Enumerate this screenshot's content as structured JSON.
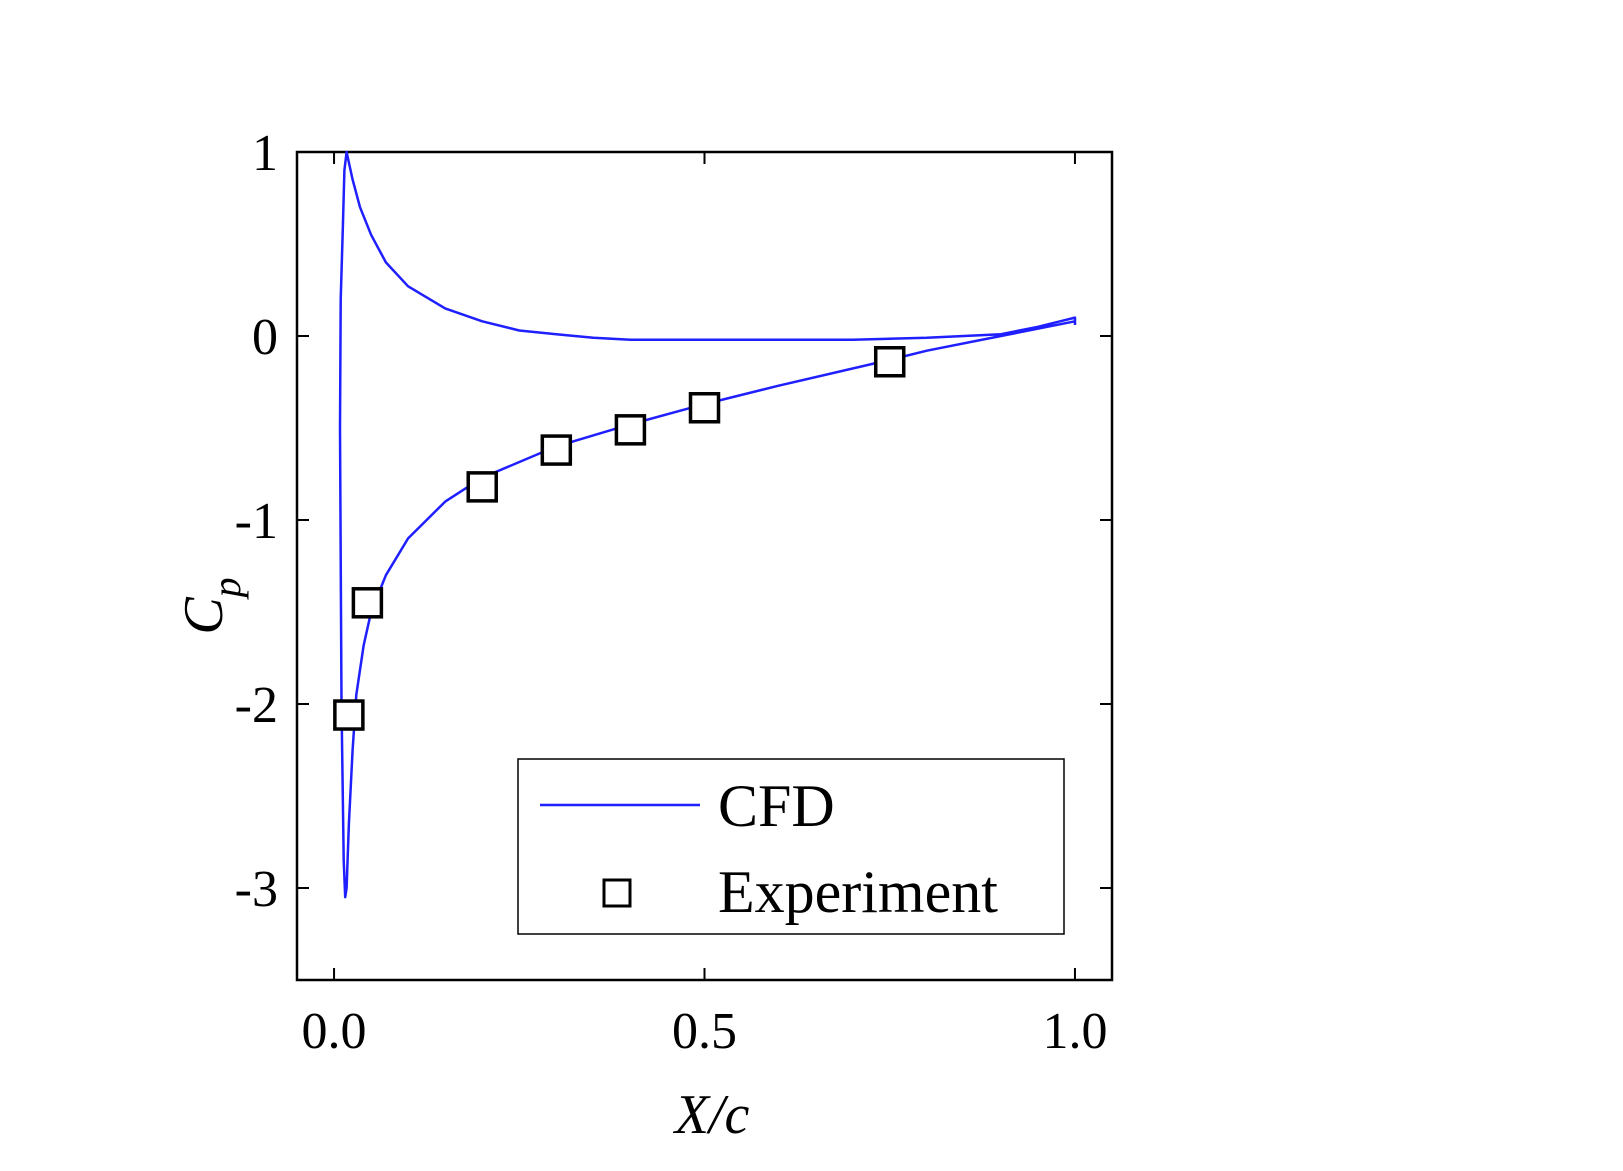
{
  "chart_data": {
    "type": "line",
    "xlabel": "X/c",
    "ylabel_main": "C",
    "ylabel_sub": "p",
    "xlim": [
      -0.05,
      1.05
    ],
    "ylim": [
      -3.5,
      1.0
    ],
    "xticks": [
      0.0,
      0.5,
      1.0
    ],
    "xtick_labels": [
      "0.0",
      "0.5",
      "1.0"
    ],
    "yticks": [
      1,
      0,
      -1,
      -2,
      -3
    ],
    "ytick_labels": [
      "1",
      "0",
      "-1",
      "-2",
      "-3"
    ],
    "grid": false,
    "legend_position": "bottom-right",
    "colors": {
      "cfd": "#1f1fff",
      "experiment": "#000000"
    },
    "series": [
      {
        "name": "CFD",
        "kind": "line",
        "points": [
          [
            1.0,
            0.08
          ],
          [
            0.9,
            0.0
          ],
          [
            0.8,
            -0.08
          ],
          [
            0.75,
            -0.13
          ],
          [
            0.6,
            -0.27
          ],
          [
            0.5,
            -0.37
          ],
          [
            0.4,
            -0.48
          ],
          [
            0.3,
            -0.6
          ],
          [
            0.2,
            -0.77
          ],
          [
            0.15,
            -0.9
          ],
          [
            0.1,
            -1.1
          ],
          [
            0.07,
            -1.3
          ],
          [
            0.05,
            -1.5
          ],
          [
            0.04,
            -1.68
          ],
          [
            0.03,
            -1.95
          ],
          [
            0.025,
            -2.25
          ],
          [
            0.02,
            -2.65
          ],
          [
            0.017,
            -3.0
          ],
          [
            0.015,
            -3.05
          ],
          [
            0.013,
            -2.85
          ],
          [
            0.01,
            -2.0
          ],
          [
            0.008,
            -0.5
          ],
          [
            0.009,
            0.2
          ],
          [
            0.012,
            0.6
          ],
          [
            0.014,
            0.9
          ],
          [
            0.017,
            1.0
          ],
          [
            0.025,
            0.85
          ],
          [
            0.035,
            0.7
          ],
          [
            0.05,
            0.55
          ],
          [
            0.07,
            0.4
          ],
          [
            0.1,
            0.27
          ],
          [
            0.15,
            0.15
          ],
          [
            0.2,
            0.08
          ],
          [
            0.25,
            0.03
          ],
          [
            0.3,
            0.01
          ],
          [
            0.35,
            -0.01
          ],
          [
            0.4,
            -0.02
          ],
          [
            0.5,
            -0.02
          ],
          [
            0.6,
            -0.02
          ],
          [
            0.7,
            -0.02
          ],
          [
            0.8,
            -0.01
          ],
          [
            0.9,
            0.01
          ],
          [
            0.95,
            0.05
          ],
          [
            0.98,
            0.08
          ],
          [
            1.0,
            0.1
          ],
          [
            1.0,
            0.06
          ]
        ]
      },
      {
        "name": "Experiment",
        "kind": "markers",
        "x": [
          0.02,
          0.045,
          0.2,
          0.3,
          0.4,
          0.5,
          0.75
        ],
        "y": [
          -2.06,
          -1.45,
          -0.82,
          -0.62,
          -0.51,
          -0.39,
          -0.14
        ]
      }
    ]
  }
}
